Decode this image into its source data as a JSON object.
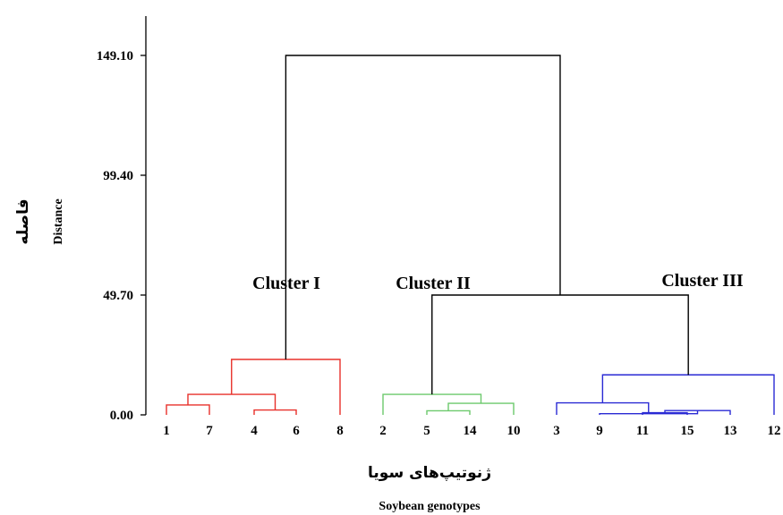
{
  "chart_data": {
    "type": "dendrogram",
    "xlabel_fa": "ژنوتیپ‌های سویا",
    "xlabel_en": "Soybean genotypes",
    "ylabel_fa": "فاصله",
    "ylabel_en": "Distance",
    "yticks": [
      "0.00",
      "49.70",
      "99.40",
      "149.10"
    ],
    "ytick_values": [
      0,
      49.7,
      99.4,
      149.1
    ],
    "ylim": [
      0,
      166
    ],
    "leaf_order": [
      "1",
      "7",
      "4",
      "6",
      "8",
      "2",
      "5",
      "14",
      "10",
      "3",
      "9",
      "11",
      "15",
      "13",
      "12"
    ],
    "clusters": [
      {
        "label": "Cluster I",
        "color": "#e8302a",
        "leaves": [
          "1",
          "7",
          "4",
          "6",
          "8"
        ]
      },
      {
        "label": "Cluster II",
        "color": "#6cc96c",
        "leaves": [
          "2",
          "5",
          "14",
          "10"
        ]
      },
      {
        "label": "Cluster III",
        "color": "#2a2ad4",
        "leaves": [
          "3",
          "9",
          "11",
          "15",
          "13",
          "12"
        ]
      }
    ],
    "merges": [
      {
        "left": "L1",
        "right": "L7",
        "height": 4.1,
        "color": "#e8302a"
      },
      {
        "left": "L4",
        "right": "L6",
        "height": 2.0,
        "color": "#e8302a"
      },
      {
        "left": "M1",
        "right": "M2",
        "height": 8.5,
        "color": "#e8302a"
      },
      {
        "left": "M3",
        "right": "L8",
        "height": 23.0,
        "color": "#e8302a"
      },
      {
        "left": "L5",
        "right": "L14",
        "height": 1.7,
        "color": "#6cc96c"
      },
      {
        "left": "M5",
        "right": "L10",
        "height": 4.8,
        "color": "#6cc96c"
      },
      {
        "left": "L2",
        "right": "M6",
        "height": 8.5,
        "color": "#6cc96c"
      },
      {
        "left": "L11",
        "right": "L15",
        "height": 0.9,
        "color": "#2a2ad4"
      },
      {
        "left": "M8",
        "right": "L13",
        "height": 1.8,
        "color": "#2a2ad4"
      },
      {
        "left": "L9",
        "right": "M9",
        "height": 0.5,
        "color": "#2a2ad4"
      },
      {
        "left": "L3",
        "right": "M10",
        "height": 5.0,
        "color": "#2a2ad4"
      },
      {
        "left": "M11",
        "right": "L12",
        "height": 16.6,
        "color": "#2a2ad4"
      },
      {
        "left": "M7",
        "right": "M12",
        "height": 49.7,
        "color": "#000000"
      },
      {
        "left": "M4",
        "right": "M13",
        "height": 149.1,
        "color": "#000000"
      }
    ]
  }
}
